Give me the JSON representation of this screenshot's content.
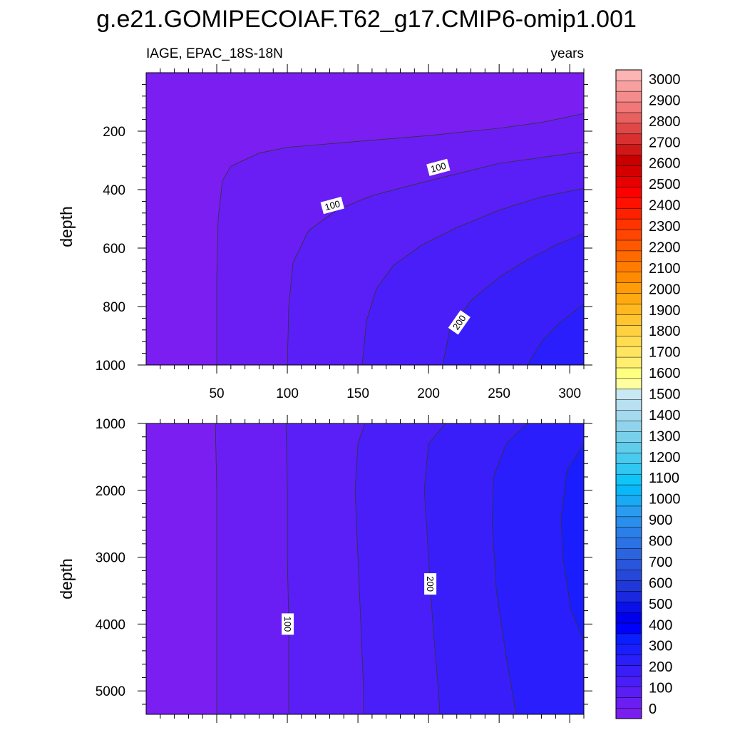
{
  "title": "g.e21.GOMIPECOIAF.T62_g17.CMIP6-omip1.001",
  "subtitle_left": "IAGE, EPAC_18S-18N",
  "subtitle_right": "years",
  "colors": {
    "contour_line": "#333333",
    "background": "#ffffff"
  },
  "chart_data": [
    {
      "type": "heatmap",
      "panel": "upper",
      "variable": "IAGE",
      "region": "EPAC_18S-18N",
      "units": "years",
      "xlabel": "",
      "ylabel": "depth",
      "xlim": [
        0,
        310
      ],
      "ylim": [
        1000,
        0
      ],
      "y_inverted": true,
      "x_ticks": [
        50,
        100,
        150,
        200,
        250,
        300
      ],
      "y_ticks": [
        200,
        400,
        600,
        800,
        1000
      ],
      "contour_levels": [
        50,
        100,
        150,
        200,
        250
      ],
      "contours": [
        {
          "level": 50,
          "points": [
            [
              50,
              1000
            ],
            [
              50,
              700
            ],
            [
              51,
              500
            ],
            [
              54,
              370
            ],
            [
              60,
              320
            ],
            [
              80,
              275
            ],
            [
              100,
              255
            ],
            [
              150,
              235
            ],
            [
              200,
              215
            ],
            [
              250,
              190
            ],
            [
              280,
              170
            ],
            [
              310,
              140
            ]
          ]
        },
        {
          "level": 100,
          "points": [
            [
              100,
              1000
            ],
            [
              101,
              800
            ],
            [
              104,
              650
            ],
            [
              115,
              540
            ],
            [
              135,
              470
            ],
            [
              160,
              420
            ],
            [
              200,
              370
            ],
            [
              250,
              310
            ],
            [
              280,
              290
            ],
            [
              310,
              270
            ]
          ]
        },
        {
          "level": 150,
          "points": [
            [
              153,
              1000
            ],
            [
              156,
              850
            ],
            [
              163,
              740
            ],
            [
              175,
              660
            ],
            [
              195,
              590
            ],
            [
              220,
              530
            ],
            [
              250,
              470
            ],
            [
              280,
              425
            ],
            [
              310,
              395
            ]
          ]
        },
        {
          "level": 200,
          "points": [
            [
              210,
              1000
            ],
            [
              215,
              880
            ],
            [
              230,
              780
            ],
            [
              250,
              700
            ],
            [
              270,
              640
            ],
            [
              290,
              590
            ],
            [
              310,
              550
            ]
          ]
        },
        {
          "level": 250,
          "points": [
            [
              270,
              1000
            ],
            [
              280,
              920
            ],
            [
              292,
              860
            ],
            [
              310,
              790
            ]
          ]
        }
      ],
      "contour_labels": [
        {
          "text": "100",
          "x": 132,
          "y": 455
        },
        {
          "text": "100",
          "x": 207,
          "y": 325
        },
        {
          "text": "200",
          "x": 222,
          "y": 855
        }
      ]
    },
    {
      "type": "heatmap",
      "panel": "lower",
      "variable": "IAGE",
      "region": "EPAC_18S-18N",
      "units": "years",
      "xlabel": "",
      "ylabel": "depth",
      "xlim": [
        0,
        310
      ],
      "ylim": [
        5350,
        1000
      ],
      "y_inverted": true,
      "x_ticks": [
        50,
        100,
        150,
        200,
        250,
        300
      ],
      "y_ticks": [
        1000,
        2000,
        3000,
        4000,
        5000
      ],
      "contour_levels": [
        50,
        100,
        150,
        200,
        250,
        300
      ],
      "contours": [
        {
          "level": 50,
          "points": [
            [
              49,
              1000
            ],
            [
              50,
              2000
            ],
            [
              50,
              3000
            ],
            [
              50,
              4000
            ],
            [
              50,
              5000
            ],
            [
              50,
              5350
            ]
          ]
        },
        {
          "level": 100,
          "points": [
            [
              99,
              1000
            ],
            [
              100,
              2000
            ],
            [
              100,
              3000
            ],
            [
              101,
              4000
            ],
            [
              101,
              5000
            ],
            [
              101,
              5350
            ]
          ]
        },
        {
          "level": 150,
          "points": [
            [
              155,
              1000
            ],
            [
              150,
              1300
            ],
            [
              148,
              2000
            ],
            [
              150,
              3000
            ],
            [
              152,
              4000
            ],
            [
              154,
              5000
            ],
            [
              154,
              5350
            ]
          ]
        },
        {
          "level": 200,
          "points": [
            [
              212,
              1000
            ],
            [
              200,
              1300
            ],
            [
              197,
              2000
            ],
            [
              200,
              3000
            ],
            [
              203,
              4000
            ],
            [
              207,
              5000
            ],
            [
              208,
              5350
            ]
          ]
        },
        {
          "level": 250,
          "points": [
            [
              270,
              1000
            ],
            [
              255,
              1300
            ],
            [
              246,
              1800
            ],
            [
              245,
              2500
            ],
            [
              248,
              3500
            ],
            [
              255,
              4500
            ],
            [
              262,
              5350
            ]
          ]
        },
        {
          "level": 300,
          "points": [
            [
              310,
              1300
            ],
            [
              298,
              1700
            ],
            [
              294,
              2400
            ],
            [
              295,
              3000
            ],
            [
              301,
              3800
            ],
            [
              310,
              4250
            ]
          ]
        }
      ],
      "contour_labels": [
        {
          "text": "200",
          "x": 201,
          "y": 3400
        },
        {
          "text": "100",
          "x": 100,
          "y": 4000
        }
      ]
    }
  ],
  "colorbar": {
    "labels": [
      "0",
      "100",
      "200",
      "300",
      "400",
      "500",
      "600",
      "700",
      "800",
      "900",
      "1000",
      "1100",
      "1200",
      "1300",
      "1400",
      "1500",
      "1600",
      "1700",
      "1800",
      "1900",
      "2000",
      "2100",
      "2200",
      "2300",
      "2400",
      "2500",
      "2600",
      "2700",
      "2800",
      "2900",
      "3000"
    ],
    "colors": [
      "#7a1ef0",
      "#6a1ef2",
      "#5a1ef4",
      "#4a1ef6",
      "#3a1ef8",
      "#2a1efa",
      "#1a1efc",
      "#0a1efe",
      "#0000ff",
      "#0000ee",
      "#0a10e8",
      "#1a28e0",
      "#2038d8",
      "#2648d8",
      "#2a56dc",
      "#2c64e0",
      "#2c72e4",
      "#2a80e8",
      "#2a8eec",
      "#2a9cf0",
      "#1aaaf4",
      "#0ab8f8",
      "#10c4f8",
      "#30c8f2",
      "#48cbee",
      "#60cdea",
      "#78d0ea",
      "#8fd4ec",
      "#a5daee",
      "#b8e0f0",
      "#c8e8f4",
      "#ffffa0",
      "#ffff80",
      "#ffee70",
      "#ffe560",
      "#ffdc50",
      "#ffd040",
      "#ffc530",
      "#ffb820",
      "#ffaa10",
      "#ff9c08",
      "#ff8c00",
      "#ff7c00",
      "#ff6a00",
      "#ff5800",
      "#ff4600",
      "#ff3400",
      "#ff2000",
      "#ff1000",
      "#ff0000",
      "#e80000",
      "#d40000",
      "#c80000",
      "#d01818",
      "#d83030",
      "#e04848",
      "#e86060",
      "#f07878",
      "#f48c8c",
      "#f8a0a0",
      "#fcb4b4"
    ]
  }
}
